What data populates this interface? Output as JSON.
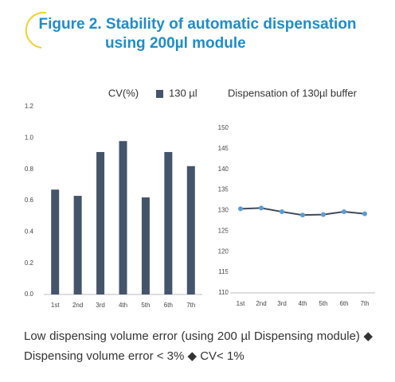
{
  "header": {
    "title_line1": "Figure 2. Stability of automatic dispensation",
    "title_line2": "using 200µl module"
  },
  "chart_data": [
    {
      "type": "bar",
      "y_label": "CV(%)",
      "categories": [
        "1st",
        "2nd",
        "3rd",
        "4th",
        "5th",
        "6th",
        "7th"
      ],
      "series": [
        {
          "name": "130 µl",
          "color": "#44546a",
          "values": [
            0.67,
            0.63,
            0.91,
            0.98,
            0.62,
            0.91,
            0.82
          ]
        }
      ],
      "ylim": [
        0,
        1.2
      ],
      "yticks": [
        {
          "value": 0,
          "label": "0.0"
        },
        0.2,
        0.4,
        0.6,
        0.8,
        {
          "value": 1,
          "label": "1.0"
        },
        1.2
      ]
    },
    {
      "type": "line",
      "title": "Dispensation of 130µl buffer",
      "categories": [
        "1st",
        "2nd",
        "3rd",
        "4th",
        "5th",
        "6th",
        "7th"
      ],
      "values": [
        130.4,
        130.6,
        129.7,
        128.9,
        129.0,
        129.7,
        129.2
      ],
      "color": "#404a5a",
      "marker_color": "#5b9bd5",
      "ylim": [
        110,
        150
      ],
      "yticks": [
        110,
        115,
        120,
        125,
        130,
        135,
        140,
        145,
        150
      ]
    }
  ],
  "caption": "Low dispensing volume error  (using 200 µl Dispensing module) ◆ Dispensing volume error < 3% ◆ CV< 1%"
}
